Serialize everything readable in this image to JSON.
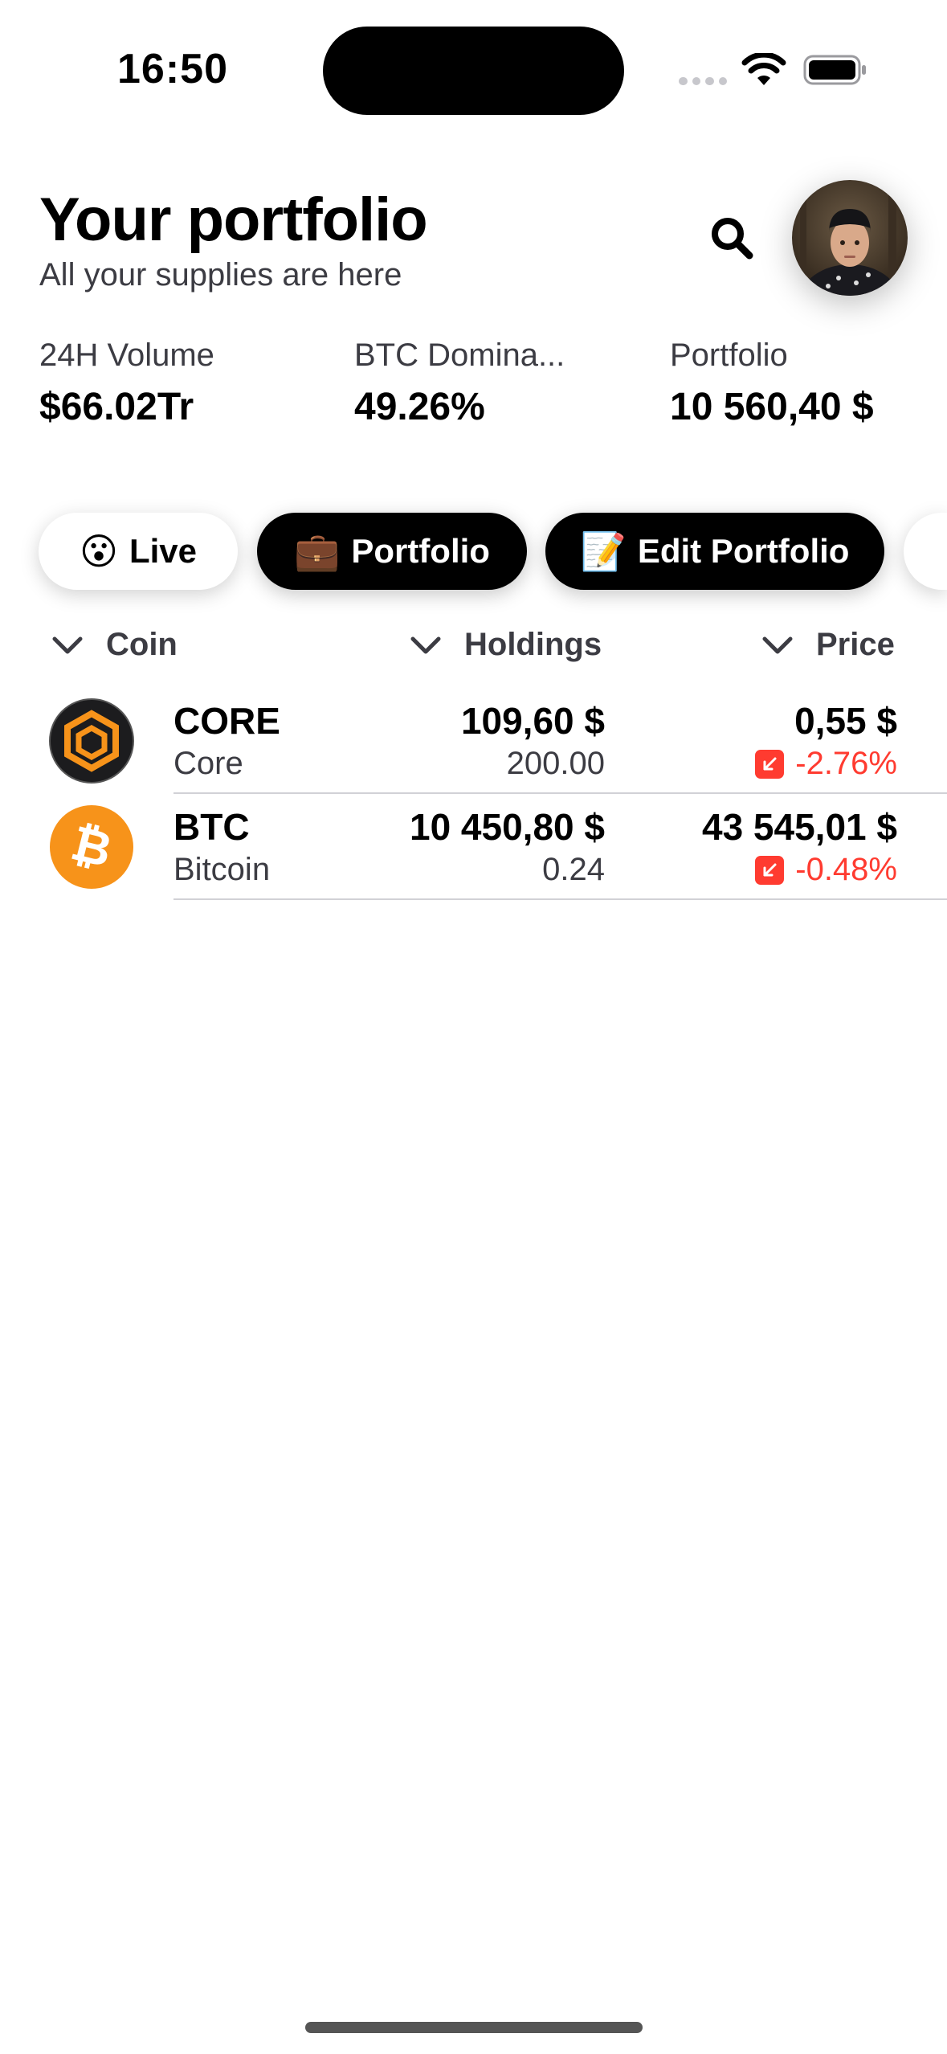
{
  "status_bar": {
    "time": "16:50"
  },
  "header": {
    "title": "Your portfolio",
    "subtitle": "All your supplies are here"
  },
  "stats": [
    {
      "label": "24H Volume",
      "value": "$66.02Tr"
    },
    {
      "label": "BTC Domina...",
      "value": "49.26%"
    },
    {
      "label": "Portfolio",
      "value": "10 560,40 $"
    }
  ],
  "chips": [
    {
      "emoji": "😮",
      "label": "Live",
      "style": "light"
    },
    {
      "emoji": "💼",
      "label": "Portfolio",
      "style": "dark"
    },
    {
      "emoji": "📝",
      "label": "Edit Portfolio",
      "style": "dark"
    }
  ],
  "columns": {
    "coin": "Coin",
    "holdings": "Holdings",
    "price": "Price"
  },
  "coins": [
    {
      "symbol": "CORE",
      "name": "Core",
      "holding_value": "109,60 $",
      "holding_amount": "200.00",
      "price": "0,55 $",
      "change": "-2.76%",
      "logo_color": "#1c1c1e",
      "logo_accent": "#f7931a"
    },
    {
      "symbol": "BTC",
      "name": "Bitcoin",
      "holding_value": "10 450,80 $",
      "holding_amount": "0.24",
      "price": "43 545,01 $",
      "change": "-0.48%",
      "logo_color": "#f7931a",
      "logo_accent": "#ffffff"
    }
  ],
  "colors": {
    "negative": "#ff3b30",
    "chip_dark": "#000000",
    "bitcoin_orange": "#f7931a"
  }
}
